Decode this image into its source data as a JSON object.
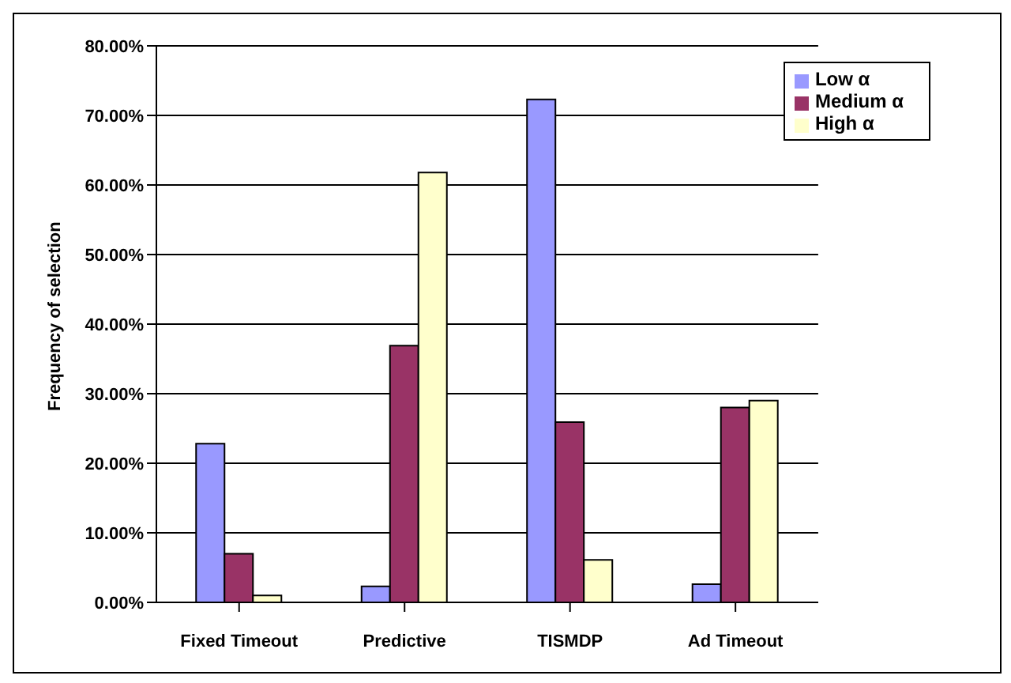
{
  "chart_data": {
    "type": "bar",
    "ylabel": "Frequency of selection",
    "categories": [
      "Fixed Timeout",
      "Predictive",
      "TISMDP",
      "Ad Timeout"
    ],
    "series": [
      {
        "name": "Low α",
        "color": "#9999ff",
        "values": [
          22.8,
          2.3,
          72.3,
          2.6
        ]
      },
      {
        "name": "Medium α",
        "color": "#993366",
        "values": [
          7.0,
          36.9,
          25.9,
          28.0
        ]
      },
      {
        "name": "High α",
        "color": "#ffffcc",
        "values": [
          1.0,
          61.8,
          6.1,
          29.0
        ]
      }
    ],
    "ylim": [
      0,
      80
    ],
    "yticks": [
      {
        "value": 0,
        "label": "0.00%"
      },
      {
        "value": 10,
        "label": "10.00%"
      },
      {
        "value": 20,
        "label": "20.00%"
      },
      {
        "value": 30,
        "label": "30.00%"
      },
      {
        "value": 40,
        "label": "40.00%"
      },
      {
        "value": 50,
        "label": "50.00%"
      },
      {
        "value": 60,
        "label": "60.00%"
      },
      {
        "value": 70,
        "label": "70.00%"
      },
      {
        "value": 80,
        "label": "80.00%"
      }
    ],
    "grid": "y",
    "legend": "top right"
  }
}
